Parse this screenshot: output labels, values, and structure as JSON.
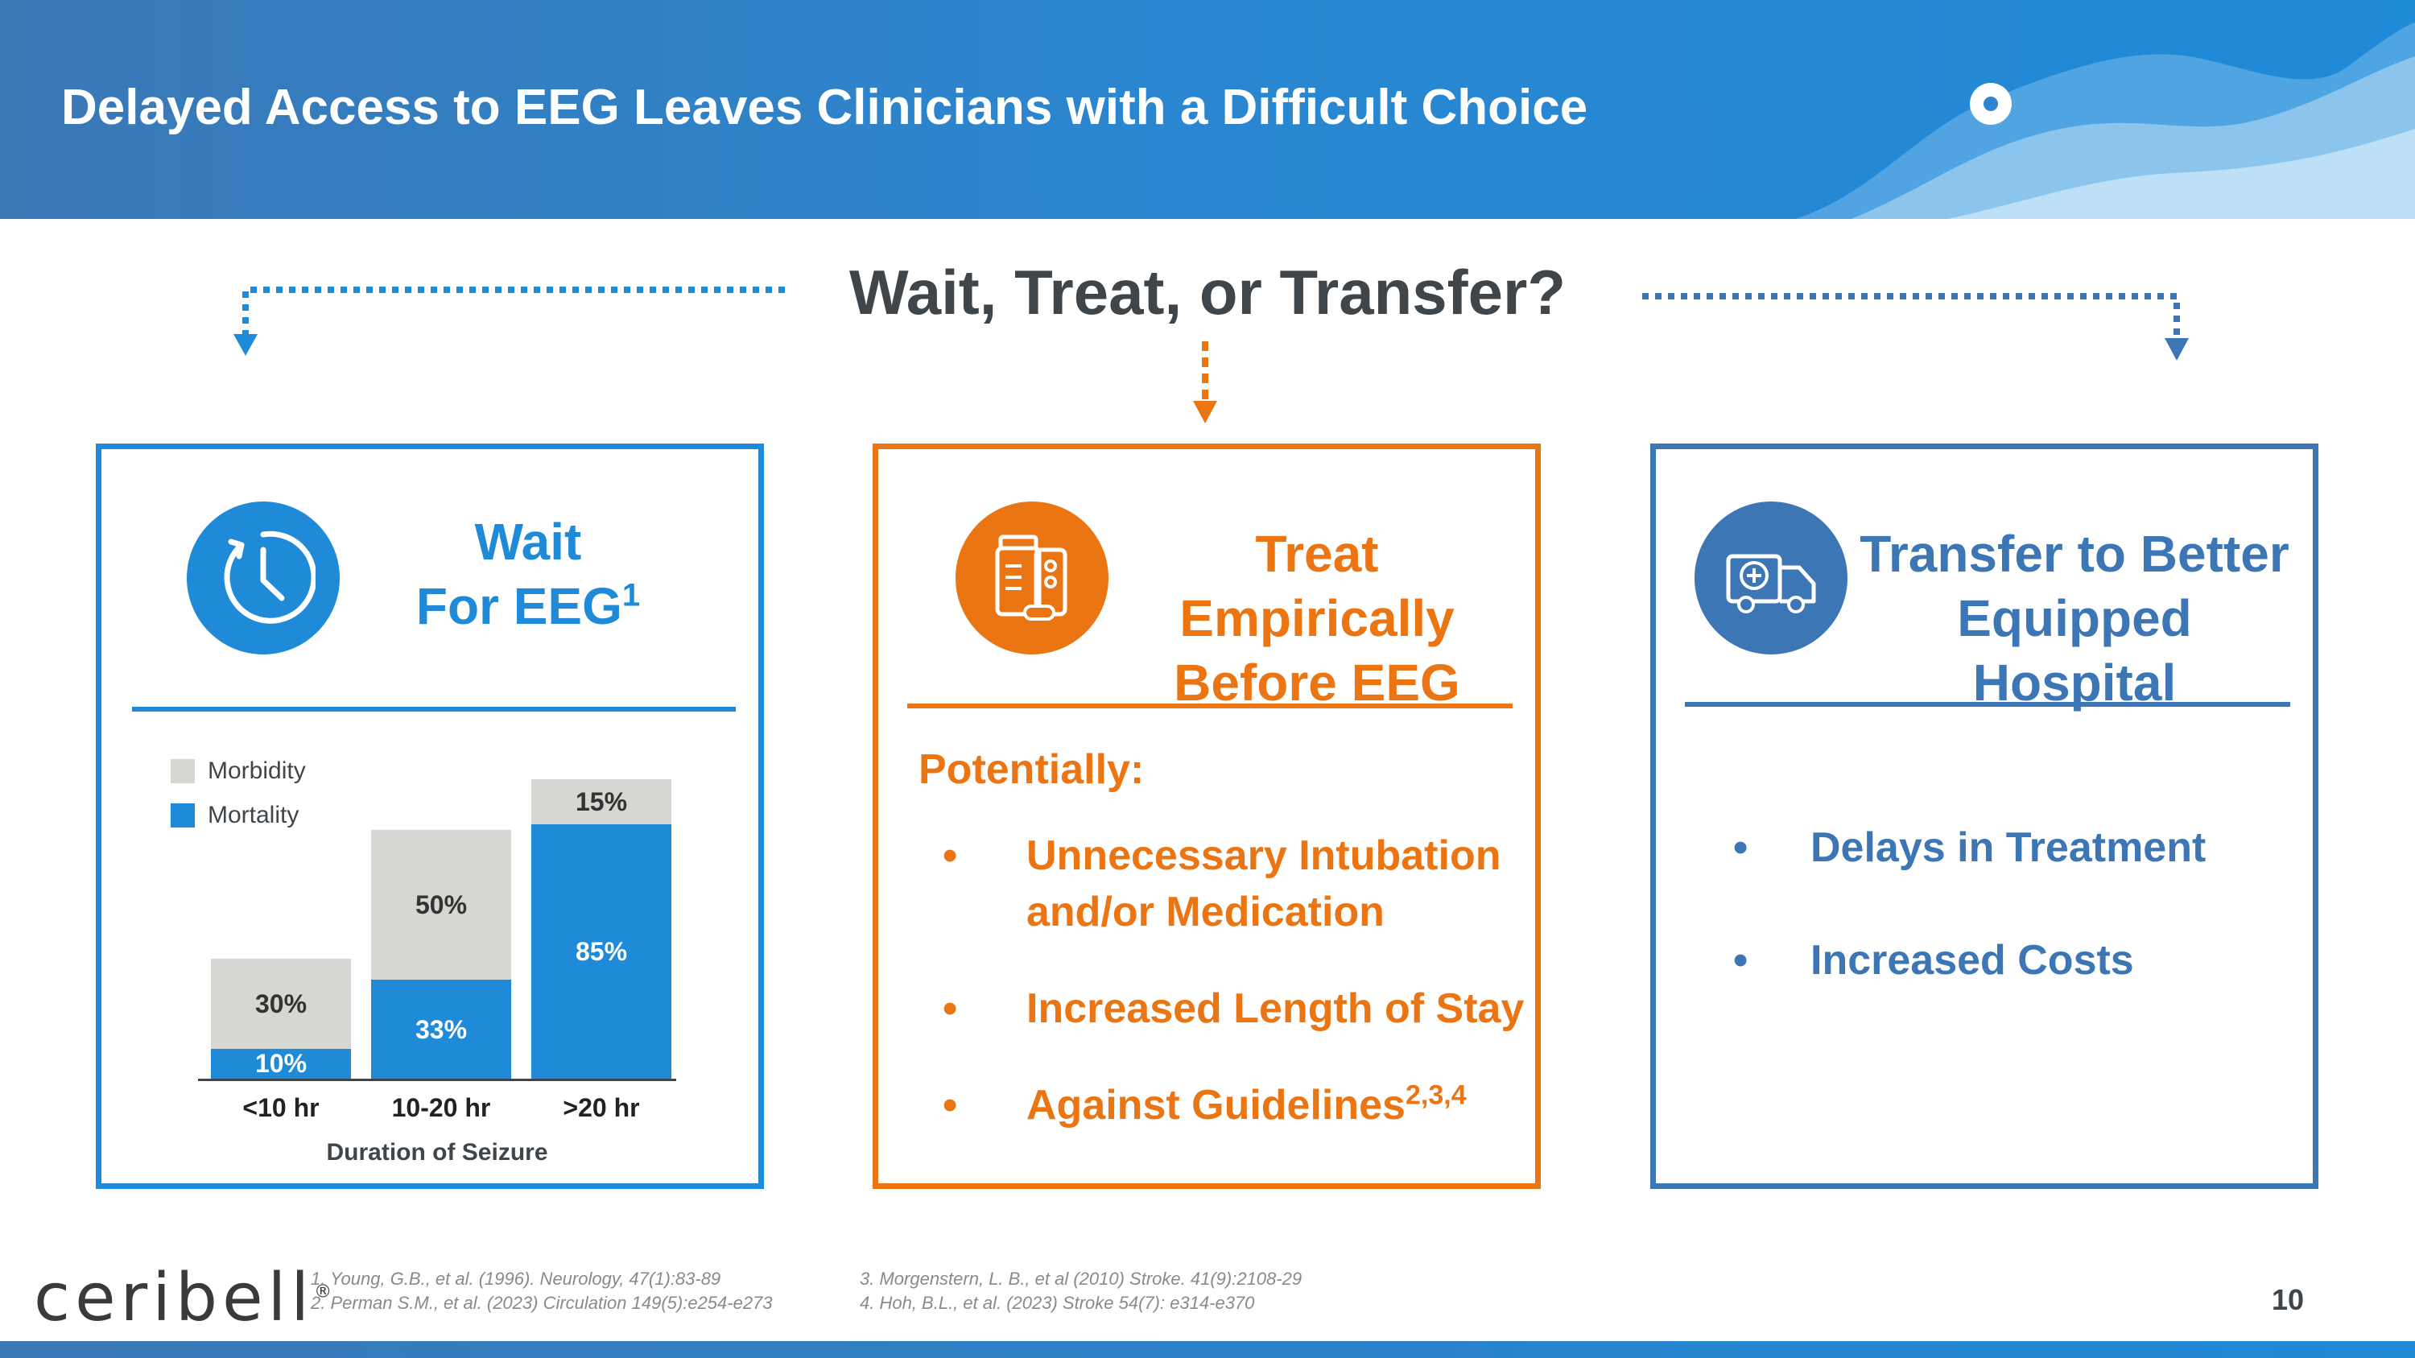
{
  "header": {
    "title": "Delayed Access to EEG Leaves Clinicians with a Difficult Choice"
  },
  "question": "Wait, Treat, or Transfer?",
  "colors": {
    "blue": "#1e8ad8",
    "orange": "#ea7512",
    "steel_blue": "#3d76b5",
    "gray_bar": "#d6d6d2"
  },
  "wait": {
    "icon": "clock-icon",
    "title_line1": "Wait",
    "title_line2": "For EEG",
    "title_sup": "1"
  },
  "chart_data": {
    "type": "bar",
    "stacked": true,
    "categories": [
      "<10 hr",
      "10-20 hr",
      ">20 hr"
    ],
    "series": [
      {
        "name": "Mortality",
        "values": [
          10,
          33,
          85
        ],
        "labels": [
          "10%",
          "33%",
          "85%"
        ],
        "color": "#1e8ad8"
      },
      {
        "name": "Morbidity",
        "values": [
          30,
          50,
          15
        ],
        "labels": [
          "30%",
          "50%",
          "15%"
        ],
        "color": "#d6d6d2"
      }
    ],
    "xlabel": "Duration of Seizure",
    "ylabel": "",
    "ylim": [
      0,
      100
    ],
    "legend_position": "top-left",
    "grid": false
  },
  "treat": {
    "icon": "medication-icon",
    "title_line1": "Treat Empirically",
    "title_line2": "Before EEG",
    "intro": "Potentially:",
    "bullets": [
      {
        "line1": "Unnecessary Intubation",
        "line2": "and/or Medication"
      },
      {
        "line1": "Increased Length of Stay"
      },
      {
        "line1": "Against Guidelines",
        "sup": "2,3,4"
      }
    ]
  },
  "transfer": {
    "icon": "ambulance-icon",
    "title_line1": "Transfer to Better",
    "title_line2": "Equipped Hospital",
    "bullets": [
      "Delays in Treatment",
      "Increased Costs"
    ]
  },
  "footer": {
    "logo_text": "ceribell",
    "logo_mark": "®",
    "refs_left": [
      "1. Young, G.B., et al. (1996). Neurology, 47(1):83-89",
      "2. Perman S.M., et al. (2023) Circulation 149(5):e254-e273"
    ],
    "refs_right": [
      "3. Morgenstern, L. B., et al (2010) Stroke. 41(9):2108-29",
      "4. Hoh, B.L., et al. (2023) Stroke 54(7): e314-e370"
    ],
    "page_number": "10"
  }
}
